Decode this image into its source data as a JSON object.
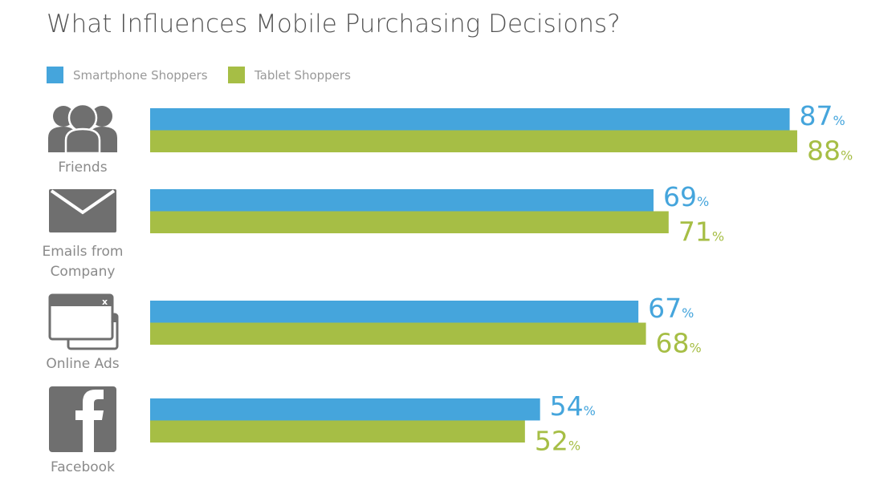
{
  "chart_data": {
    "type": "bar",
    "orientation": "horizontal",
    "title": "What Influences Mobile Purchasing Decisions?",
    "categories": [
      "Friends",
      "Emails from Company",
      "Online Ads",
      "Facebook"
    ],
    "category_label_lines": [
      [
        "Friends"
      ],
      [
        "Emails from",
        "Company"
      ],
      [
        "Online Ads"
      ],
      [
        "Facebook"
      ]
    ],
    "category_icons": [
      "people-icon",
      "envelope-icon",
      "popup-windows-icon",
      "facebook-icon"
    ],
    "series": [
      {
        "name": "Smartphone Shoppers",
        "color": "#45a5dc",
        "values": [
          87,
          69,
          67,
          54
        ]
      },
      {
        "name": "Tablet Shoppers",
        "color": "#a6be45",
        "values": [
          88,
          71,
          68,
          52
        ]
      }
    ],
    "unit": "%",
    "legend": "top-left",
    "grid": false
  }
}
